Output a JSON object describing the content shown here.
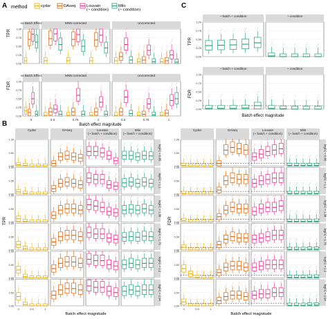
{
  "panel_letters": {
    "A": "A",
    "B": "B",
    "C": "C"
  },
  "legend": {
    "title": "method",
    "items": [
      {
        "label": "cydar",
        "color": "#E6AB02"
      },
      {
        "label": "DAseq",
        "color": "#D95F02"
      },
      {
        "label": "Louvain\n(~ condition)",
        "color": "#E7298A"
      },
      {
        "label": "Milo\n(~ condition)",
        "color": "#1B9E77"
      }
    ]
  },
  "chart_data": [
    {
      "id": "A",
      "type": "box",
      "xlabel": "Batch effect magnitude",
      "facet_cols": [
        "no Batch Effect",
        "MNN corrected",
        "Uncorrected"
      ],
      "facet_rows": [
        "TPR",
        "FDR"
      ],
      "x": [
        "0",
        "0.5",
        "0.75",
        "1"
      ],
      "x_per_facet": [
        [
          "0"
        ],
        [
          "0.5",
          "0.75",
          "1"
        ],
        [
          "0.5",
          "0.75",
          "1"
        ]
      ],
      "ylim": [
        0,
        1
      ],
      "yticks": [
        "0.00",
        "0.25",
        "0.50",
        "0.75",
        "1.00"
      ],
      "rows": [
        {
          "facets": [
            [
              [
                0.08,
                0.7,
                0.85,
                0.62
              ]
            ],
            [
              [
                0.08,
                0.72,
                0.86,
                0.55
              ],
              [
                0.08,
                0.7,
                0.84,
                0.5
              ],
              [
                0.08,
                0.68,
                0.82,
                0.45
              ]
            ],
            [
              [
                0.08,
                0.2,
                0.55,
                0.1
              ],
              [
                0.05,
                0.1,
                0.38,
                0.05
              ],
              [
                0.05,
                0.08,
                0.25,
                0.04
              ]
            ]
          ]
        },
        {
          "facets": [
            [
              [
                0.15,
                0.1,
                0.5,
                0.05
              ]
            ],
            [
              [
                0.02,
                0.12,
                0.2,
                0.05
              ],
              [
                0.02,
                0.12,
                0.6,
                0.05
              ],
              [
                0.02,
                0.12,
                0.4,
                0.05
              ]
            ],
            [
              [
                0.02,
                0.12,
                0.55,
                0.07
              ],
              [
                0.02,
                0.05,
                0.35,
                0.03
              ],
              [
                0.02,
                0.08,
                0.45,
                0.5
              ]
            ]
          ]
        }
      ]
    },
    {
      "id": "C",
      "type": "box",
      "xlabel": "Batch effect magnitude",
      "facet_cols": [
        "~ batch + condition",
        "~ condition"
      ],
      "facet_rows": [
        "TPR",
        "FDR"
      ],
      "x_per_facet": [
        [
          "0",
          "0.25",
          "0.5",
          "0.75",
          "1"
        ],
        [
          "0",
          "0.25",
          "0.5",
          "0.75",
          "1"
        ]
      ],
      "ylim": [
        0,
        1
      ],
      "yticks": [
        "0.00",
        "0.25",
        "0.50",
        "0.75",
        "1.00"
      ],
      "rows": [
        {
          "facets": [
            [
              0.32,
              0.33,
              0.34,
              0.36,
              0.4
            ],
            [
              0.02,
              0.0,
              0.0,
              0.0,
              0.0
            ]
          ]
        },
        {
          "facets": [
            [
              0.02,
              0.02,
              0.02,
              0.03,
              0.1
            ],
            [
              0.02,
              0.01,
              0.0,
              0.0,
              0.0
            ]
          ]
        }
      ]
    },
    {
      "id": "B-TPR",
      "type": "box",
      "xlabel": "Batch effect magnitude",
      "ylabel": "TPR",
      "facet_cols": [
        "Cydar",
        "DAseq",
        "Louvain\n(~ batch + condition)",
        "Milo\n(~ batch + condition)"
      ],
      "facet_rows": [
        "logFC = 0.85",
        "logFC = 1.1",
        "logFC = 1.38",
        "logFC = 1.75",
        "logFC = 2.2",
        "logFC = 2.94"
      ],
      "x": [
        "0",
        "0.25",
        "0.5",
        "0.75",
        "1"
      ],
      "ylim": [
        0,
        1
      ],
      "yticks": [
        "0.00",
        "0.25",
        "0.50",
        "0.75",
        "1.00"
      ],
      "rows": [
        {
          "facets": [
            [
              0.05,
              0.02,
              0.0,
              0.0,
              0.0
            ],
            [
              0.1,
              0.35,
              0.4,
              0.35,
              0.3
            ],
            [
              0.55,
              0.55,
              0.5,
              0.4,
              0.2
            ],
            [
              0.4,
              0.4,
              0.35,
              0.4,
              0.38
            ]
          ]
        },
        {
          "facets": [
            [
              0.08,
              0.02,
              0.0,
              0.0,
              0.0
            ],
            [
              0.2,
              0.4,
              0.45,
              0.4,
              0.35
            ],
            [
              0.6,
              0.55,
              0.55,
              0.35,
              0.3
            ],
            [
              0.42,
              0.45,
              0.4,
              0.45,
              0.4
            ]
          ]
        },
        {
          "facets": [
            [
              0.12,
              0.02,
              0.0,
              0.0,
              0.0
            ],
            [
              0.25,
              0.45,
              0.5,
              0.5,
              0.45
            ],
            [
              0.65,
              0.6,
              0.55,
              0.4,
              0.35
            ],
            [
              0.45,
              0.48,
              0.45,
              0.5,
              0.45
            ]
          ]
        },
        {
          "facets": [
            [
              0.2,
              0.05,
              0.0,
              0.0,
              0.0
            ],
            [
              0.3,
              0.5,
              0.55,
              0.55,
              0.5
            ],
            [
              0.65,
              0.6,
              0.6,
              0.45,
              0.4
            ],
            [
              0.48,
              0.5,
              0.48,
              0.52,
              0.5
            ]
          ]
        },
        {
          "facets": [
            [
              0.3,
              0.05,
              0.0,
              0.0,
              0.0
            ],
            [
              0.35,
              0.55,
              0.6,
              0.6,
              0.55
            ],
            [
              0.7,
              0.65,
              0.65,
              0.5,
              0.45
            ],
            [
              0.5,
              0.55,
              0.5,
              0.55,
              0.55
            ]
          ]
        },
        {
          "facets": [
            [
              0.35,
              0.05,
              0.0,
              0.0,
              0.0
            ],
            [
              0.4,
              0.6,
              0.65,
              0.65,
              0.6
            ],
            [
              0.75,
              0.7,
              0.7,
              0.55,
              0.5
            ],
            [
              0.55,
              0.6,
              0.55,
              0.6,
              0.6
            ]
          ]
        }
      ]
    },
    {
      "id": "B-FDR",
      "type": "box",
      "xlabel": "Batch effect magnitude",
      "ylabel": "FDR",
      "facet_cols": [
        "Cydar",
        "DAseq",
        "Louvain\n(~ batch + condition)",
        "Milo\n(~ batch + condition)"
      ],
      "facet_rows": [
        "logFC = 0.85",
        "logFC = 1.1",
        "logFC = 1.38",
        "logFC = 1.75",
        "logFC = 2.2",
        "logFC = 2.94"
      ],
      "x": [
        "0",
        "0.25",
        "0.5",
        "0.75",
        "1"
      ],
      "ylim": [
        0,
        1
      ],
      "yticks": [
        "0.00",
        "0.25",
        "0.50",
        "0.75",
        "1.00"
      ],
      "rows": [
        {
          "facets": [
            [
              0.02,
              0.0,
              0.0,
              0.0,
              0.0
            ],
            [
              0.1,
              0.6,
              0.7,
              0.65,
              0.6
            ],
            [
              0.35,
              0.45,
              0.55,
              0.6,
              0.65
            ],
            [
              0.02,
              0.02,
              0.02,
              0.02,
              0.02
            ]
          ]
        },
        {
          "facets": [
            [
              0.02,
              0.0,
              0.0,
              0.0,
              0.0
            ],
            [
              0.15,
              0.5,
              0.6,
              0.55,
              0.55
            ],
            [
              0.4,
              0.5,
              0.55,
              0.6,
              0.6
            ],
            [
              0.02,
              0.02,
              0.02,
              0.02,
              0.02
            ]
          ]
        },
        {
          "facets": [
            [
              0.05,
              0.0,
              0.0,
              0.0,
              0.0
            ],
            [
              0.2,
              0.45,
              0.55,
              0.5,
              0.5
            ],
            [
              0.4,
              0.5,
              0.55,
              0.55,
              0.6
            ],
            [
              0.02,
              0.02,
              0.02,
              0.02,
              0.03
            ]
          ]
        },
        {
          "facets": [
            [
              0.1,
              0.0,
              0.0,
              0.0,
              0.0
            ],
            [
              0.2,
              0.4,
              0.5,
              0.45,
              0.45
            ],
            [
              0.4,
              0.45,
              0.5,
              0.55,
              0.55
            ],
            [
              0.02,
              0.02,
              0.02,
              0.03,
              0.03
            ]
          ]
        },
        {
          "facets": [
            [
              0.35,
              0.15,
              0.02,
              0.0,
              0.0
            ],
            [
              0.2,
              0.4,
              0.45,
              0.45,
              0.4
            ],
            [
              0.4,
              0.45,
              0.5,
              0.5,
              0.5
            ],
            [
              0.02,
              0.02,
              0.02,
              0.03,
              0.03
            ]
          ]
        },
        {
          "facets": [
            [
              0.15,
              0.0,
              0.0,
              0.0,
              0.0
            ],
            [
              0.2,
              0.35,
              0.4,
              0.4,
              0.35
            ],
            [
              0.4,
              0.45,
              0.45,
              0.5,
              0.5
            ],
            [
              0.02,
              0.02,
              0.02,
              0.03,
              0.03
            ]
          ]
        }
      ]
    }
  ]
}
